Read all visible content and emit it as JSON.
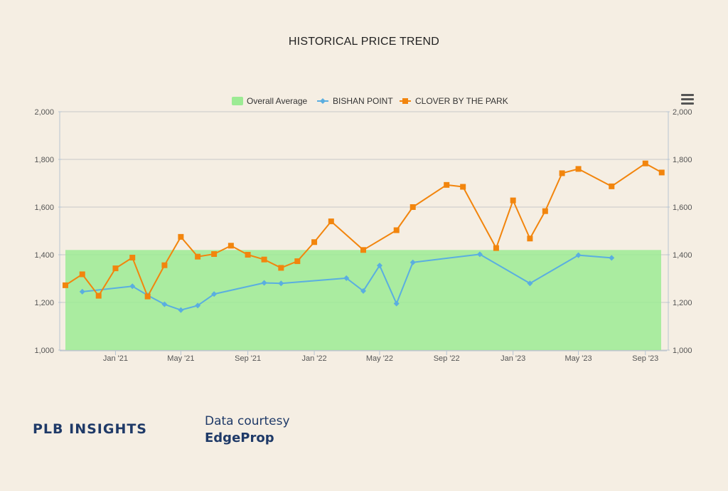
{
  "page": {
    "footer": {
      "brand": "PLB INSIGHTS",
      "courtesy_label": "Data courtesy",
      "courtesy_source": "EdgeProp"
    }
  },
  "chart_data": {
    "type": "line",
    "title": "HISTORICAL PRICE TREND",
    "xlabel": "",
    "ylabel": "",
    "ylim": [
      1000,
      2000
    ],
    "yticks": [
      "1,000",
      "1,200",
      "1,400",
      "1,600",
      "1,800",
      "2,000"
    ],
    "xlim": [
      "2020-10-01",
      "2023-09-30"
    ],
    "xticks": [
      {
        "date": "2021-01-01",
        "label": "Jan '21"
      },
      {
        "date": "2021-05-01",
        "label": "May '21"
      },
      {
        "date": "2021-09-01",
        "label": "Sep '21"
      },
      {
        "date": "2022-01-01",
        "label": "Jan '22"
      },
      {
        "date": "2022-05-01",
        "label": "May '22"
      },
      {
        "date": "2022-09-01",
        "label": "Sep '22"
      },
      {
        "date": "2023-01-01",
        "label": "Jan '23"
      },
      {
        "date": "2023-05-01",
        "label": "May '23"
      },
      {
        "date": "2023-09-01",
        "label": "Sep '23"
      }
    ],
    "grid": true,
    "legend_position": "top-center",
    "band": {
      "name": "Overall Average",
      "from": 1000,
      "to": 1420,
      "color": "#9ceb94"
    },
    "series": [
      {
        "name": "BISHAN POINT",
        "color": "#5aaee0",
        "marker": "diamond",
        "points": [
          [
            "2020-11-01",
            1245
          ],
          [
            "2021-02-01",
            1268
          ],
          [
            "2021-03-01",
            1230
          ],
          [
            "2021-04-01",
            1192
          ],
          [
            "2021-05-01",
            1168
          ],
          [
            "2021-06-01",
            1187
          ],
          [
            "2021-07-01",
            1235
          ],
          [
            "2021-10-01",
            1282
          ],
          [
            "2021-11-01",
            1280
          ],
          [
            "2022-03-01",
            1302
          ],
          [
            "2022-04-01",
            1248
          ],
          [
            "2022-05-01",
            1355
          ],
          [
            "2022-06-01",
            1195
          ],
          [
            "2022-07-01",
            1368
          ],
          [
            "2022-11-01",
            1402
          ],
          [
            "2023-02-01",
            1280
          ],
          [
            "2023-05-01",
            1398
          ],
          [
            "2023-07-01",
            1387
          ]
        ]
      },
      {
        "name": "CLOVER BY THE PARK",
        "color": "#f2850d",
        "marker": "square",
        "points": [
          [
            "2020-10-01",
            1272
          ],
          [
            "2020-11-01",
            1318
          ],
          [
            "2020-12-01",
            1228
          ],
          [
            "2021-01-01",
            1343
          ],
          [
            "2021-02-01",
            1388
          ],
          [
            "2021-03-01",
            1225
          ],
          [
            "2021-04-01",
            1356
          ],
          [
            "2021-05-01",
            1475
          ],
          [
            "2021-06-01",
            1392
          ],
          [
            "2021-07-01",
            1403
          ],
          [
            "2021-08-01",
            1438
          ],
          [
            "2021-09-01",
            1400
          ],
          [
            "2021-10-01",
            1380
          ],
          [
            "2021-11-01",
            1345
          ],
          [
            "2021-12-01",
            1373
          ],
          [
            "2022-01-01",
            1453
          ],
          [
            "2022-02-01",
            1540
          ],
          [
            "2022-04-01",
            1420
          ],
          [
            "2022-06-01",
            1503
          ],
          [
            "2022-07-01",
            1600
          ],
          [
            "2022-09-01",
            1693
          ],
          [
            "2022-10-01",
            1685
          ],
          [
            "2022-12-01",
            1428
          ],
          [
            "2023-01-01",
            1628
          ],
          [
            "2023-02-01",
            1468
          ],
          [
            "2023-03-01",
            1583
          ],
          [
            "2023-04-01",
            1742
          ],
          [
            "2023-05-01",
            1760
          ],
          [
            "2023-07-01",
            1687
          ],
          [
            "2023-09-01",
            1783
          ],
          [
            "2023-10-01",
            1745
          ]
        ]
      }
    ]
  }
}
